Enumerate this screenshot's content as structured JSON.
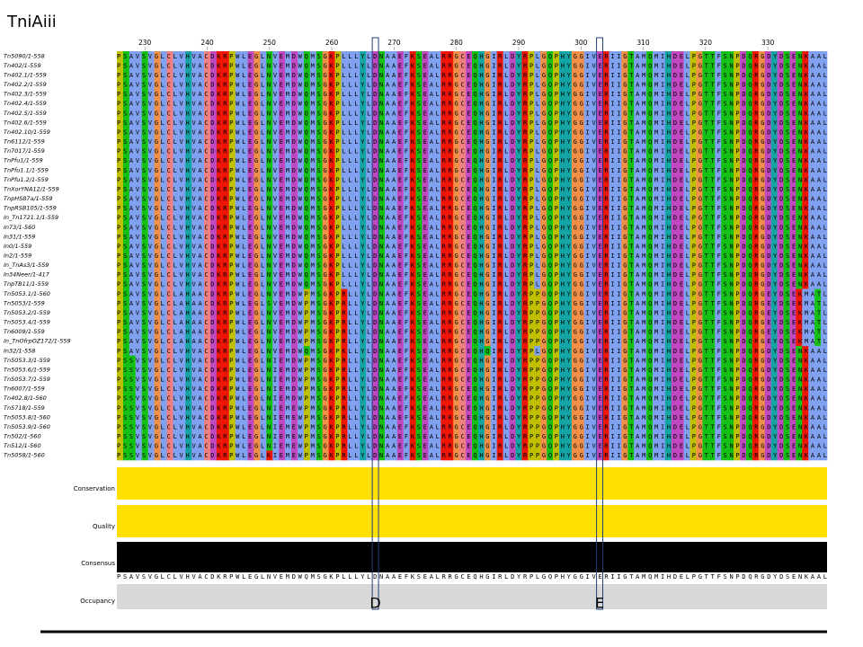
{
  "figure_label": "TniAiii",
  "alignment": {
    "first_position": 226,
    "ruler_ticks": [
      230,
      240,
      250,
      260,
      270,
      280,
      290,
      300,
      310,
      320,
      330
    ],
    "colour_scheme": {
      "A": "#80a0f0",
      "I": "#80a0f0",
      "L": "#80a0f0",
      "M": "#80a0f0",
      "F": "#80a0f0",
      "W": "#80a0f0",
      "V": "#80a0f0",
      "C": "#f08080",
      "K": "#f01505",
      "R": "#f01505",
      "E": "#c048c0",
      "D": "#c048c0",
      "N": "#15c015",
      "Q": "#15c015",
      "S": "#15c015",
      "T": "#15c015",
      "G": "#f09048",
      "P": "#c0c000",
      "H": "#15a4a4",
      "Y": "#15a4a4"
    },
    "sequences": [
      {
        "name": "Tn5090/1-558",
        "seq": "PSAVSVGLCLVHVACDKRPWLEGLNVEMDWQMSGKPLLLYLDNAAEFKSEALRRGCEQHGIRLDYRPLGQPHYGGIVERIIGTAMQMIHDELPGTTFSNPDQRGDYDSENKAAL"
      },
      {
        "name": "Tn402/1-559",
        "seq": "PSAVSVGLCLVHVACDKRPWLEGLNVEMDWQMSGKPLLLYLDNAAEFKSEALRRGCEQHGIRLDYRPLGQPHYGGIVERIIGTAMQMIHDELPGTTFSNPDQRGDYDSENKAAL"
      },
      {
        "name": "Tn402.1/1-559",
        "seq": "PSAVSVGLCLVHVACDKRPWLEGLNVEMDWQMSGKPLLLYLDNAAEFKSEALRRGCEQHGIRLDYRPLGQPHYGGIVERIIGTAMQMIHDELPGTTFSNPDQRGDYDSENKAAL"
      },
      {
        "name": "Tn402.2/1-559",
        "seq": "PSAVSVGLCLVHVACDKRPWLEGLNVEMDWQMSGKPLLLYLDNAAEFKSEALRRGCEQHGIRLDYRPLGQPHYGGIVERIIGTAMQMIHDELPGTTFSNPDQRGDYDSENKAAL"
      },
      {
        "name": "Tn402.3/1-559",
        "seq": "PSAVSVGLCLVHVACDKRPWLEGLNVEMDWQMSGKPLLLYLDNAAEFKSEALRRGCEQHGIRLDYRPLGQPHYGGIVERIIGTAMQMIHDELPGTTFSNPDQRGDYDSENKAAL"
      },
      {
        "name": "Tn402.4/1-559",
        "seq": "PSAVSVGLCLVHVACDKRPWLEGLNVEMDWQMSGKPLLLYLDNAAEFKSEALRRGCEQHGIRLDYRPLGQPHYGGIVERIIGTAMQMIHDELPGTTFSNPDQRGDYDSENKAAL"
      },
      {
        "name": "Tn402.5/1-559",
        "seq": "PSAVSVGLCLVHVACDKRPWLEGLNVEMDWQMSGKPLLLYLDNAAEFKSEALRRGCEQHGIRLDYRPLGQPHYGGIVERIIGTAMQMIHDELPGTTFSNPDQRGDYDSENKAAL"
      },
      {
        "name": "Tn402.6/1-559",
        "seq": "PSAVSVGLCLVHVACDKRPWLEGLNVEMDWQMSGKPLLLYLDNAAEFKSEALRRGCEQHGIRLDYRPLGQPHYGGIVERIIGTAMQMIHDELPGTTFSNPDQRGDYDSENKAAL"
      },
      {
        "name": "Tn402.10/1-559",
        "seq": "PSAVSVGLCLVHVACDKRPWLEGLNVEMDWQMSGKPLLLYLDNAAEFKSEALRRGCEQHGIRLDYRPLGQPHYGGIVERIIGTAMQMIHDELPGTTFSNPDQRGDYDSENKAAL"
      },
      {
        "name": "Tn6112/1-559",
        "seq": "PSAVSVGLCLVHVACDKRPWLEGLNVEMDWQMSGKPLLLYLDNAAEFKSEALRRGCEQHGIRLDYRPLGQPHYGGIVERIIGTAMQMIHDELPGTTFSNPDQRGDYDSENKAAL"
      },
      {
        "name": "Tn7017/1-559",
        "seq": "PSAVSVGLCLVHVACDKRPWLEGLNVEMDWQMSGKPLLLYLDNAAEFKSEALRRGCEQHGIRLDYRPLGQPHYGGIVERIIGTAMQMIHDELPGTTFSNPDQRGDYDSENKAAL"
      },
      {
        "name": "TnPfu1/1-559",
        "seq": "PSAVSVGLCLVHVACDKRPWLEGLNVEMDWQMSGKPLLLYLDNAAEFKSEALRRGCEQHGIRLDYRPLGQPHYGGIVERIIGTAMQMIHDELPGTTFSNPDQRGDYDSENKAAL"
      },
      {
        "name": "TnPfu1.1/1-559",
        "seq": "PSAVSVGLCLVHVACDKRPWLEGLNVEMDWQMSGKPLLLYLDNAAEFKSEALRRGCEQHGIRLDYRPLGQPHYGGIVERIIGTAMQMIHDELPGTTFSNPDQRGDYDSENKAAL"
      },
      {
        "name": "TnPfu1.2/1-559",
        "seq": "PSAVSVGLCLVHVACDKRPWLEGLNVEMDWQMSGKPLLLYLDNAAEFKSEALRRGCEQHGIRLDYRPLGQPHYGGIVERIIGTAMQMIHDELPGTTFSNPDQRGDYDSENKAAL"
      },
      {
        "name": "TnXorYNA12/1-559",
        "seq": "PSAVSVGLCLVHVACDKRPWLEGLNVEMDWQMSGKPLLLYLDNAAEFKSEALRRGCEQHGIRLDYRPLGQPHYGGIVERIIGTAMQMIHDELPGTTFSNPDQRGDYDSENKAAL"
      },
      {
        "name": "TnpHS87a/1-559",
        "seq": "PSAVSVGLCLVHVACDKRPWLEGLNVEMDWQMSGKPLLLYLDNAAEFKSEALRRGCEQHGIRLDYRPLGQPHYGGIVERIIGTAMQMIHDELPGTTFSNPDQRGDYDSENKAAL"
      },
      {
        "name": "TnpRSB105/1-559",
        "seq": "PSAVSVGLCLVHVACDKRPWLEGLNVEMDWQMSGKPLLLYLDNAAEFKSEALRRGCEQHGIRLDYRPLGQPHYGGIVERIIGTAMQMIHDELPGTTFSNPDQRGDYDSENKAAL"
      },
      {
        "name": "In_Tn1721.1/1-559",
        "seq": "PSAVSVGLCLVHVACDKRPWLEGLNVEMDWQMSGKPLLLYLDNAAEFKSEALRRGCEQHGIRLDYRPLGQPHYGGIVERIIGTAMQMIHDELPGTTFSNPDQRGDYDSENKAAL"
      },
      {
        "name": "In73/1-560",
        "seq": "PSAVSVGLCLVHVACDKRPWLEGLNVEMDWQMSGKPLLLYLDNAAEFKSEALRRGCEQHGIRLDYRPLGQPHYGGIVERIIGTAMQMIHDELPGTTFSNPDQRGDYDSENKAAL"
      },
      {
        "name": "In31/1-559",
        "seq": "PSAVSVGLCLVHVACDKRPWLEGLNVEMDWQMSGKPLLLYLDNAAEFKSEALRRGCEQHGIRLDYRPLGQPHYGGIVERIIGTAMQMIHDELPGTTFSNPDQRGDYDSENKAAL"
      },
      {
        "name": "In0/1-559",
        "seq": "PSAVSVGLCLVHVACDKRPWLEGLNVEMDWQMSGKPLLLYLDNAAEFKSEALRRGCEQHGIRLDYRPLGQPHYGGIVERIIGTAMQMIHDELPGTTFSNPDQRGDYDSENKAAL"
      },
      {
        "name": "In2/1-559",
        "seq": "PSAVSVGLCLVHVACDKRPWLEGLNVEMDWQMSGKPLLLYLDNAAEFKSEALRRGCEQHGIRLDYRPLGQPHYGGIVERIIGTAMQMIHDELPGTTFSNPDQRGDYDSENKAAL"
      },
      {
        "name": "In_TnAs3/1-559",
        "seq": "PSAVSVGLCLVHVACDKRPWLEGLNVEMDWQMSGKPLLLYLDNAAEFKSEALRRGCEQHGIRLDYRPLGQPHYGGIVERIIGTAMQMIHDELPGTTFSNPDQRGDYDSENKAAL"
      },
      {
        "name": "In34Neer/1-417",
        "seq": "PSAVSVGLCLVHVACDKRPWLEGLNVEMDWQMSGKPLLLYLDNAAEFKSEALRRGCEQHGIRLDYRPLGQPHYGGIVERIIGTAMQMIHDELPGTTFSNPDQRGDYDSENKAAL"
      },
      {
        "name": "TnpTB11/1-559",
        "seq": "PSAVSVGLCLVHVACDKRPWLEGLNVEMDWQMSGKPLLLYLDNAAEFKSEALRRGCEQHGIRLDYRPLGQPHYGGIVERIIGTAMQMIHDELPGTTFSNPDQRGDYDSENKAAL"
      },
      {
        "name": "Tn5053.1/1-560",
        "seq": "PSAVSVGLCLAHAACDKRPWLEGLNVEMDWPMSGKPRLLYLDNAAEFKSEALRRGCEQHGIRLDYRPPGQPHYGGIVERIIGTAMQMIHDELPGTTFSNPDQRGEYDSEKMATL"
      },
      {
        "name": "Tn5053/1-559",
        "seq": "PSAVSVGLCLAHAACDKRPWLEGLSVEMDWPMSGKPRLLYLDNAAEFKSEALRRGCEQHGIRLDYRPPGQPHYGGIVERIIGTAMQMIHDELPGTTFSNPDQRGEYDSEKMATL"
      },
      {
        "name": "Tn5053.2/1-559",
        "seq": "PSAVSVGLCLAHAACDKRPWLEGLNVEMDWPMSGKPRLLYLDNAAEFKSEALRRGCEQHGIRLDYRPPGQPHYGGIVERIIGTAMQMIHDELPGTTFSNPDQRGEYDSEKMATL"
      },
      {
        "name": "Tn5053.4/1-559",
        "seq": "PSAVSVGLCLAHAACDKRPWLEGLNVEMDWPMSGKPRLLYLDNAAEFKSEALRRGCEQHGIRLDYRPPGQPHYGGIVERIIGTAMQMIHDELPGTTFSNPDQRGEYDSEKMATL"
      },
      {
        "name": "Tn6009/1-559",
        "seq": "PSAVSVGLCLAHAACDKRPWLEGLNVEMDWPMSGKPRLLYLDNAAEFKSEALRRGCEQHGIRLDYRPPGQPHYGGIVERIIGTAMQMIHDELPGTTFSNPDQRGEYDSEKMATL"
      },
      {
        "name": "In_TnOfrpOZ172/1-559",
        "seq": "PSAVSVGLCLAHAACDKRPWLEGLNVEMDWPMSGKPRLLYLDNAAEFKSEALRRGCEQHGIRLDYRPPGQPHYGGIVERIIGTAMQMIHDELPGTTFSNPDQRGEYDSEKMATL"
      },
      {
        "name": "In32/1-558",
        "seq": "PSAVSVGLCLVHVACDKRPWLEGLNVEMDWQMSGKPKLLYLDNAAEFKSEALRRGCEQHQIRLDYRPLGQPHYGGIVERIIGTAMQMIHDELPGTTFSNPDQRGDYDSENKAAL"
      },
      {
        "name": "Tn5053.3/1-559",
        "seq": "PSSVSVGLCLVHVACDKRPWLEGLNIEMDWPMSGKPRLLYLDNAAEFKSEALRRGCEQHGIRLDYRPPGQPHYGGIVERIIGTAMQMIHDELPGTTFSNPDQRGDYDSENKAAL"
      },
      {
        "name": "Tn5053.6/1-559",
        "seq": "PSSVSVGLCLVHVACDKRPWLEGLNIEMDWPMSGKPRLLYLDNAAEFKSEALRRGCEQHGIRLDYRPPGQPHYGGIVERIIGTAMQMIHDELPGTTFSNPDQRGDYDSENKAAL"
      },
      {
        "name": "Tn5053.7/1-559",
        "seq": "PSSVSVGLCLVHVACDKRPWLEGLNIEMDWPMSGKPRLLYLDNAAEFKSEALRRGCEQHGIRLDYRPPGQPHYGGIVERIIGTAMQMIHDELPGTTFSNPDQRGDYDSENKAAL"
      },
      {
        "name": "Tn6007/1-559",
        "seq": "PSSVSVGLCLVHVACDKRPWLEGLNIEMDWPMSGKPRLLYLDNAAEFKSEALRRGCEQHGIRLDYRPPGQPHYGGIVERIIGTAMQMIHDELPGTTFSNPDQRGDYDSENKAAL"
      },
      {
        "name": "Tn402.8/1-560",
        "seq": "PSSVSVGLCLVHVACDKRPWLEGLNIEMDWPMSGKPRLLYLDNAAEFKSEALRRGCEQHGIRLDYRPPGQPHYGGIVERIIGTAMQMIHDELPGTTFSNPDQRGDYDSENKAAL"
      },
      {
        "name": "Tn5718/1-559",
        "seq": "PSSVSVGLCLVHVACDKRPWLEGLNIEMEWPMSGKPRLLYLDNAAEFKSEALRRGCEQHGIRLDYRPPGQPHYGGIVERIIGTAMQMIHDELPGTTFSNPDQRGDYDSENKAAL"
      },
      {
        "name": "Tn5053.8/1-560",
        "seq": "PSSVSVGLCLVHVACDKRPWLEGLNIEMEWPMSGKPRLLYLDNAAEFKSEALRRGCEQHGIRLDYRPPGQPHYGGIVERIIGTAMQMIHDELPGTTFSNPDQRGDYDSENKAAL"
      },
      {
        "name": "Tn5053.9/1-560",
        "seq": "PSSVSVGLCLVHVACDKRPWLEGLNIEMEWPMSGKPRLLYLDNAAEFKSEALRRGCEQHGIRLDYRPPGQPHYGGIVERIIGTAMQMIHDELPGTTFSNPDQRGDYDSENKAAL"
      },
      {
        "name": "Tn502/1-560",
        "seq": "PSSVSVGLCLVHVACDKRPWLEGLNIEMEWPMSGKPRLLYLDNAAEFKSEALRRGCEQHGIRLDYRPPGQPHYGGIVERIIGTAMQMIHDELPGTTFSNPDQRGDYDSENKAAL"
      },
      {
        "name": "Tn512/1-560",
        "seq": "PSSVSVGLCLVHVACDKRPWLEGLNIEMEWPMSGKPRLLYLDNAAEFKSEALRRGCEQHGIRLDYRPPGQPHYGGIVERIIGTAMQMIHDELPGTTFSNPDQRGDYDSENKAAL"
      },
      {
        "name": "Tn5058/1-560",
        "seq": "PSSVSVGLCLVHVACDKRPWLEGLKIEMEWPMSGKPRLLYLDNAAEFKSEALRRGCEQHGIRLDYRPPGQPHYGGIVERIIGTAMQMIHDELPGTTFSNPDQRGDYDSENKAAL"
      }
    ],
    "annotation_labels": {
      "conservation": "Conservation",
      "quality": "Quality",
      "consensus": "Consensus",
      "occupancy": "Occupancy"
    },
    "consensus_sequence": "PSAVSVGLCLVHVACDKRPWLEGLNVEMDWQMSGKPLLLYLDNAAEFKSEALRRGCEQHGIRLDYRPLGQPHYGGIVERIIGTAMQMIHDELPGTTFSNPDQRGDYDSENKAAL",
    "markers": [
      {
        "label": "D",
        "position": 267
      },
      {
        "label": "E",
        "position": 303
      }
    ]
  }
}
